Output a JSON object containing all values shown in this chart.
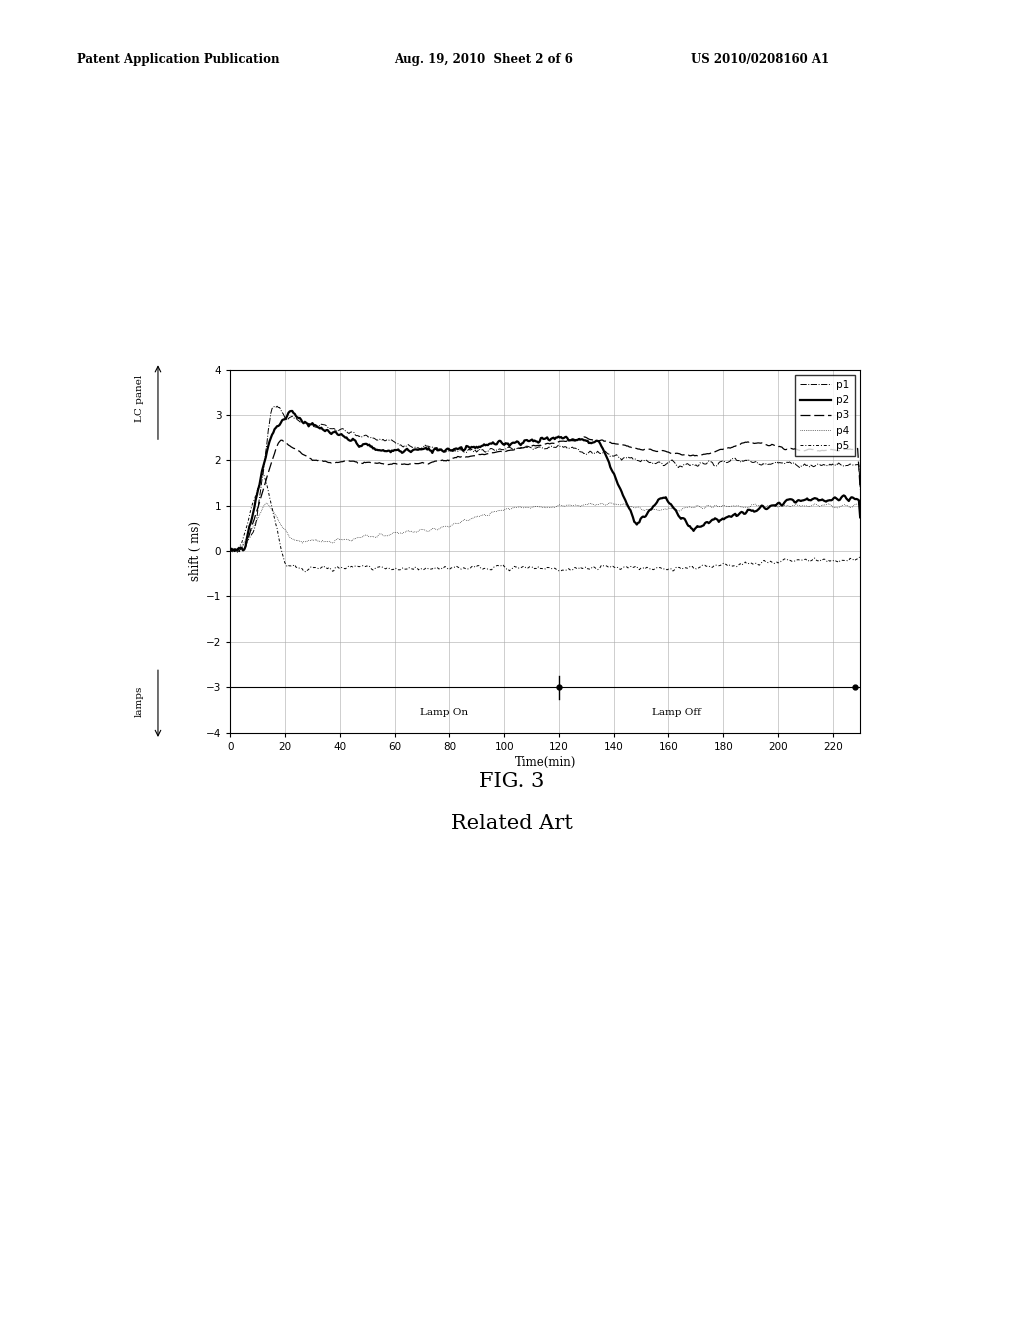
{
  "header_left": "Patent Application Publication",
  "header_mid": "Aug. 19, 2010  Sheet 2 of 6",
  "header_right": "US 2010/0208160 A1",
  "fig_label": "FIG. 3",
  "fig_sublabel": "Related Art",
  "xlabel": "Time(min)",
  "ylabel": "shift ( ms)",
  "ylabel_lc": "LC panel",
  "ylabel_lamps": "lamps",
  "xlim": [
    0,
    230
  ],
  "ylim": [
    -4.0,
    4.0
  ],
  "yticks": [
    -4.0,
    -3.0,
    -2.0,
    -1.0,
    0.0,
    1.0,
    2.0,
    3.0,
    4.0
  ],
  "xticks": [
    0,
    20,
    40,
    60,
    80,
    100,
    120,
    140,
    160,
    180,
    200,
    220
  ],
  "lamp_on_label": "Lamp On",
  "lamp_off_label": "Lamp Off",
  "lamp_on_x": 78,
  "lamp_off_x": 163,
  "lamp_line_y": -3.0,
  "lamp_marker_x1": 120,
  "lamp_marker_x2": 228,
  "background_color": "#ffffff",
  "grid_color": "#aaaaaa",
  "legend_labels": [
    "p1",
    "p2",
    "p3",
    "p4",
    "p5"
  ]
}
